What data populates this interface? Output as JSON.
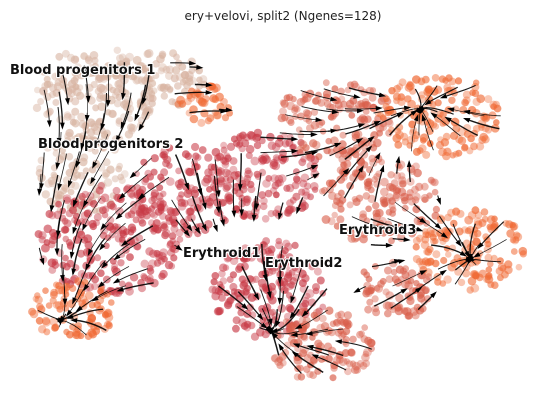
{
  "chart_data": {
    "type": "scatter",
    "title": "ery+velovi, split2 (Ngenes=128)",
    "xlabel": "",
    "ylabel": "",
    "axes_visible": false,
    "grid": false,
    "legend": "none",
    "overlay": "velocity streamlines with arrowheads",
    "cluster_labels": [
      "Blood progenitors 1",
      "Blood progenitors 2",
      "Erythroid1",
      "Erythroid2",
      "Erythroid3"
    ],
    "colors": {
      "progenitor": "#d8b4a2",
      "mid": "#d95f4b",
      "erythroid": "#c83a46",
      "bright": "#f06a35",
      "stream": "#000000"
    }
  }
}
